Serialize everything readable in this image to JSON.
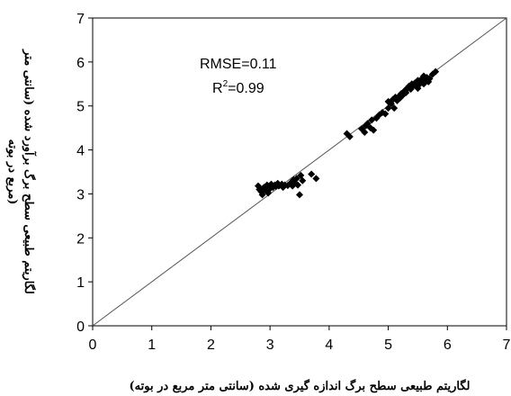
{
  "chart_data": {
    "type": "scatter",
    "title": "",
    "xlabel": "لگاریتم طبیعی سطح برگ اندازه گیری شده (سانتی متر مربع در بوته)",
    "ylabel_line1": "لگاریتم طبیعی سطح برگ برآورد شده (سانتی متر",
    "ylabel_line2": "مربع در بوته)",
    "xlim": [
      0,
      7
    ],
    "ylim": [
      0,
      7
    ],
    "x_ticks": [
      "0",
      "1",
      "2",
      "3",
      "4",
      "5",
      "6",
      "7"
    ],
    "y_ticks": [
      "0",
      "1",
      "2",
      "3",
      "4",
      "5",
      "6",
      "7"
    ],
    "grid": false,
    "reference_line": {
      "from": [
        0,
        0
      ],
      "to": [
        7,
        7
      ]
    },
    "annotations": {
      "rmse": "RMSE=0.11",
      "r2_base": "R",
      "r2_sup": "2",
      "r2_value": "=0.99"
    },
    "marker_color": "#000000",
    "series": [
      {
        "marker": "diamond",
        "points": [
          [
            2.8,
            3.18
          ],
          [
            2.82,
            3.1
          ],
          [
            2.85,
            3.05
          ],
          [
            2.87,
            2.98
          ],
          [
            2.9,
            3.15
          ],
          [
            2.92,
            3.08
          ],
          [
            2.95,
            3.2
          ],
          [
            2.97,
            3.02
          ],
          [
            3.0,
            3.12
          ],
          [
            3.02,
            3.22
          ],
          [
            3.05,
            3.15
          ],
          [
            3.08,
            3.2
          ],
          [
            3.1,
            3.17
          ],
          [
            3.13,
            3.24
          ],
          [
            3.15,
            3.18
          ],
          [
            3.2,
            3.22
          ],
          [
            3.22,
            3.15
          ],
          [
            3.25,
            3.2
          ],
          [
            3.3,
            3.19
          ],
          [
            3.35,
            3.25
          ],
          [
            3.38,
            3.18
          ],
          [
            3.4,
            3.32
          ],
          [
            3.42,
            3.25
          ],
          [
            3.45,
            3.35
          ],
          [
            3.47,
            3.2
          ],
          [
            3.5,
            2.98
          ],
          [
            3.52,
            3.42
          ],
          [
            3.55,
            3.3
          ],
          [
            3.7,
            3.45
          ],
          [
            3.78,
            3.35
          ],
          [
            4.3,
            4.37
          ],
          [
            4.35,
            4.3
          ],
          [
            4.55,
            4.48
          ],
          [
            4.6,
            4.4
          ],
          [
            4.62,
            4.55
          ],
          [
            4.65,
            4.6
          ],
          [
            4.7,
            4.5
          ],
          [
            4.72,
            4.68
          ],
          [
            4.75,
            4.45
          ],
          [
            4.8,
            4.72
          ],
          [
            4.85,
            4.8
          ],
          [
            4.9,
            4.85
          ],
          [
            4.95,
            4.82
          ],
          [
            5.0,
            4.95
          ],
          [
            5.0,
            5.1
          ],
          [
            5.05,
            5.05
          ],
          [
            5.08,
            5.15
          ],
          [
            5.1,
            4.95
          ],
          [
            5.12,
            5.2
          ],
          [
            5.15,
            5.12
          ],
          [
            5.18,
            5.22
          ],
          [
            5.2,
            5.18
          ],
          [
            5.22,
            5.28
          ],
          [
            5.25,
            5.25
          ],
          [
            5.28,
            5.35
          ],
          [
            5.3,
            5.3
          ],
          [
            5.32,
            5.4
          ],
          [
            5.35,
            5.45
          ],
          [
            5.38,
            5.38
          ],
          [
            5.4,
            5.5
          ],
          [
            5.42,
            5.45
          ],
          [
            5.45,
            5.52
          ],
          [
            5.48,
            5.5
          ],
          [
            5.5,
            5.4
          ],
          [
            5.5,
            5.58
          ],
          [
            5.52,
            5.48
          ],
          [
            5.55,
            5.55
          ],
          [
            5.57,
            5.62
          ],
          [
            5.6,
            5.5
          ],
          [
            5.6,
            5.68
          ],
          [
            5.62,
            5.58
          ],
          [
            5.65,
            5.65
          ],
          [
            5.68,
            5.55
          ],
          [
            5.7,
            5.62
          ],
          [
            5.75,
            5.72
          ],
          [
            5.8,
            5.78
          ]
        ]
      }
    ]
  }
}
